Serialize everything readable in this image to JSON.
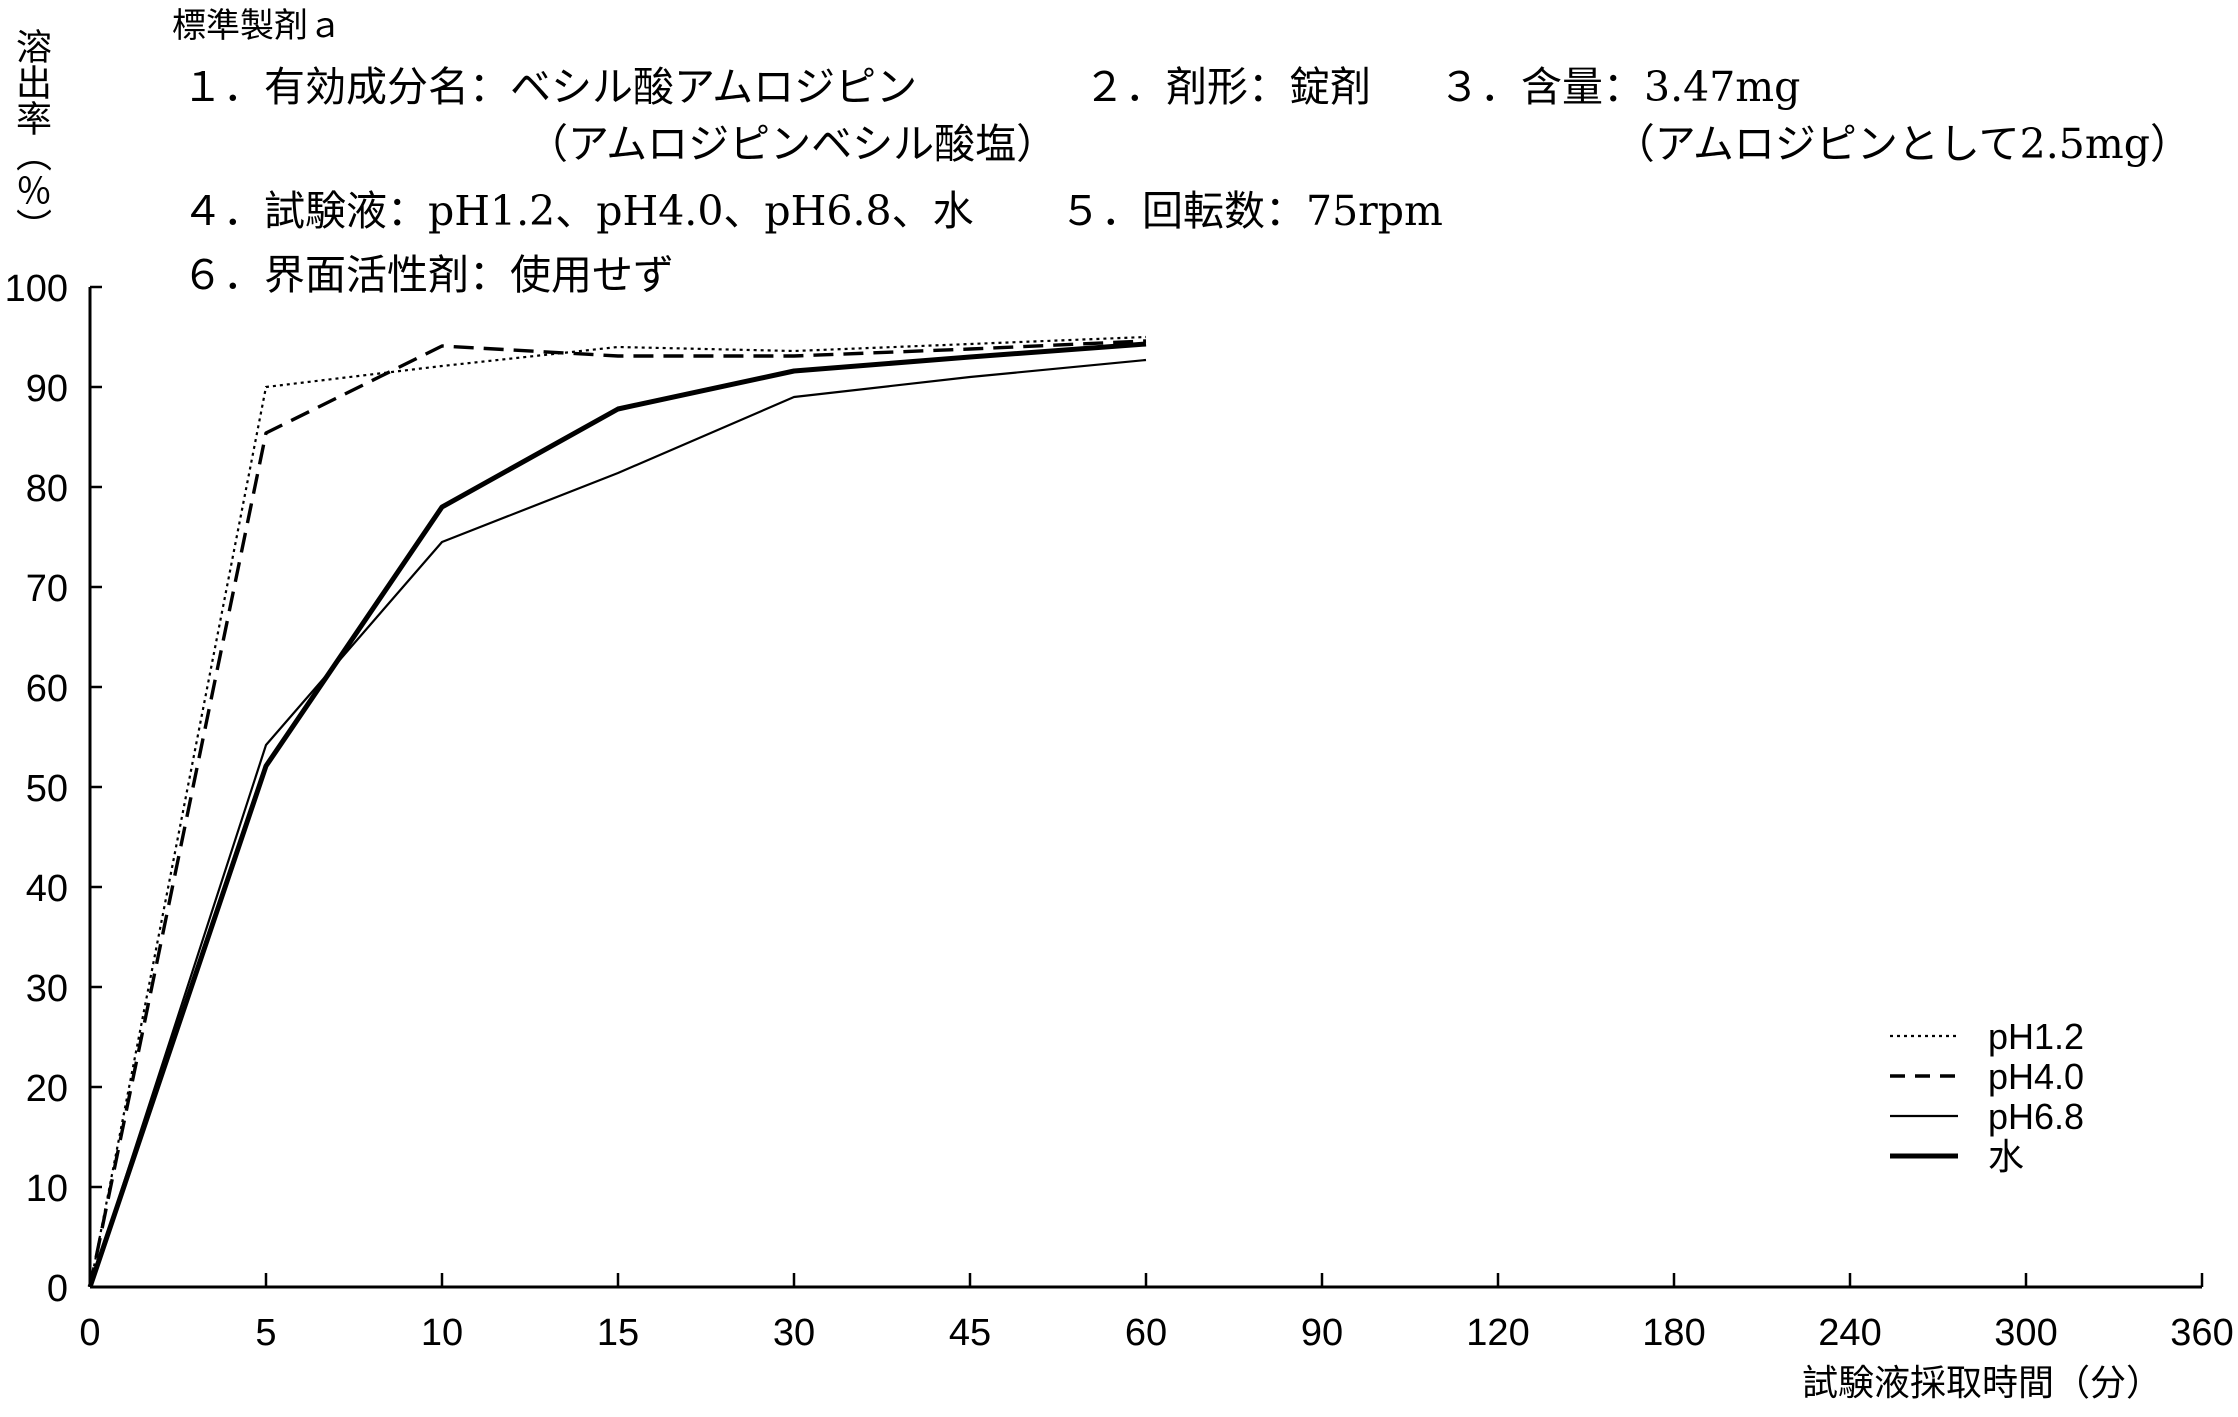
{
  "chart_data": {
    "type": "line",
    "title": "標準製剤ａ",
    "annotations": [
      "１．有効成分名：ベシル酸アムロジピン",
      "（アムロジピンベシル酸塩）",
      "２．剤形：錠剤",
      "３．含量：3.47mg",
      "（アムロジピンとして2.5mg）",
      "４．試験液：pH1.2、pH4.0、pH6.8、水",
      "５．回転数：75rpm",
      "６．界面活性剤：使用せず"
    ],
    "xlabel": "試験液採取時間（分）",
    "ylabel": "溶出率（％）",
    "x_ticks": [
      0,
      5,
      10,
      15,
      30,
      45,
      60,
      90,
      120,
      180,
      240,
      300,
      360
    ],
    "y_ticks": [
      0,
      10,
      20,
      30,
      40,
      50,
      60,
      70,
      80,
      90,
      100
    ],
    "xlim": [
      0,
      360
    ],
    "ylim": [
      0,
      100
    ],
    "grid": false,
    "legend": "bottom-right",
    "x": [
      0,
      5,
      10,
      15,
      30,
      45,
      60
    ],
    "series": [
      {
        "name": "pH1.2",
        "color": "#000000",
        "values": [
          0,
          90.0,
          92.1,
          94.0,
          93.6,
          94.3,
          95.0
        ]
      },
      {
        "name": "pH4.0",
        "color": "#000000",
        "values": [
          0,
          85.4,
          94.1,
          93.1,
          93.1,
          93.8,
          94.6
        ]
      },
      {
        "name": "pH6.8",
        "color": "#000000",
        "values": [
          0,
          54.2,
          74.5,
          81.4,
          89.0,
          91.0,
          92.7
        ]
      },
      {
        "name": "水",
        "color": "#000000",
        "values": [
          0,
          52.1,
          78.0,
          87.8,
          91.6,
          93.0,
          94.3
        ]
      }
    ]
  }
}
